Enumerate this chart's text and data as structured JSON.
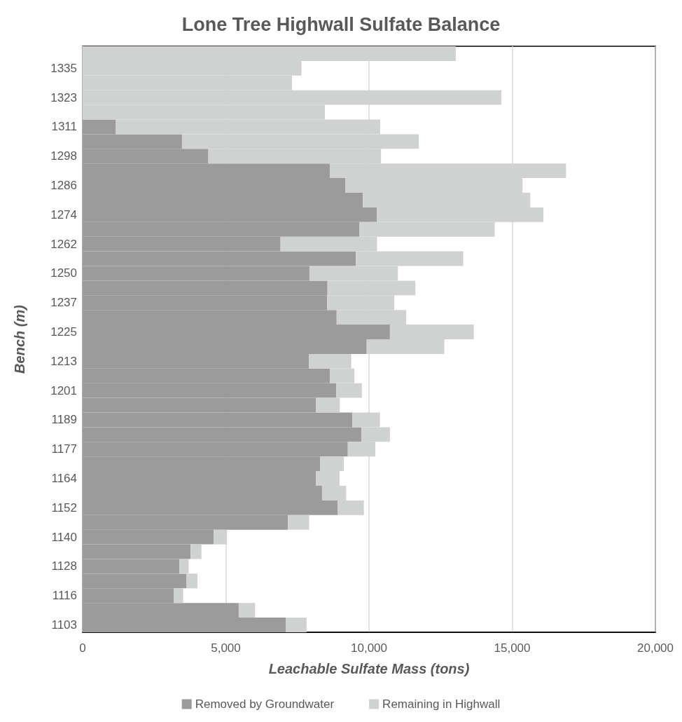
{
  "chart_data": {
    "type": "bar",
    "orientation": "horizontal",
    "stacked": true,
    "title": "Lone Tree Highwall Sulfate Balance",
    "xlabel": "Leachable Sulfate Mass (tons)",
    "ylabel": "Bench (m)",
    "categories": [
      null,
      "1335",
      null,
      "1323",
      null,
      "1311",
      null,
      "1298",
      null,
      "1286",
      null,
      "1274",
      null,
      "1262",
      null,
      "1250",
      null,
      "1237",
      null,
      "1225",
      null,
      "1213",
      null,
      "1201",
      null,
      "1189",
      null,
      "1177",
      null,
      "1164",
      null,
      "1152",
      null,
      "1140",
      null,
      "1128",
      null,
      "1116",
      null,
      "1103"
    ],
    "series": [
      {
        "name": "Removed by Groundwater",
        "color": "#9b9b9b",
        "values": [
          0,
          0,
          0,
          0,
          0,
          1160,
          3470,
          4390,
          8630,
          9170,
          9790,
          10270,
          9670,
          6910,
          9540,
          7920,
          8550,
          8540,
          8870,
          10730,
          9920,
          7900,
          8630,
          8860,
          8150,
          9420,
          9730,
          9260,
          8290,
          8150,
          8360,
          8910,
          7170,
          4580,
          3770,
          3380,
          3630,
          3190,
          5450,
          7090
        ]
      },
      {
        "name": "Remaining in Highwall",
        "color": "#d0d1d1",
        "values": [
          13030,
          7640,
          7310,
          14620,
          8460,
          9230,
          8270,
          6030,
          8250,
          6190,
          5840,
          5820,
          4720,
          3370,
          3750,
          3090,
          3070,
          2340,
          2430,
          2930,
          2710,
          1480,
          860,
          890,
          830,
          960,
          1000,
          960,
          830,
          820,
          840,
          910,
          740,
          460,
          380,
          320,
          380,
          320,
          570,
          730
        ]
      }
    ],
    "xlim": [
      0,
      20000
    ],
    "xticks": [
      {
        "value": 0,
        "label": "0"
      },
      {
        "value": 5000,
        "label": "5,000"
      },
      {
        "value": 10000,
        "label": "10,000"
      },
      {
        "value": 15000,
        "label": "15,000"
      },
      {
        "value": 20000,
        "label": "20,000"
      }
    ],
    "grid": "x",
    "legend": "bottom"
  }
}
